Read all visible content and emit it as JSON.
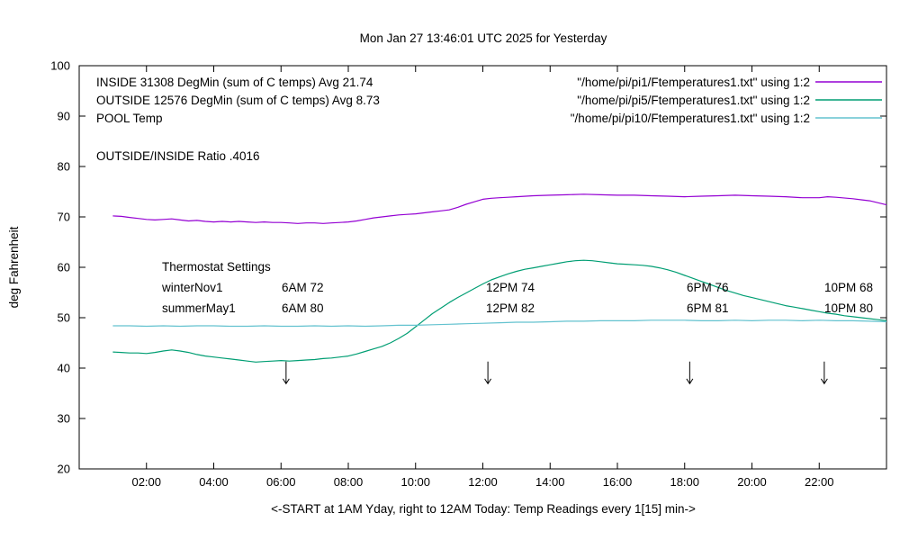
{
  "title": "Mon Jan 27 13:46:01 UTC 2025 for Yesterday",
  "axes": {
    "ylabel": "deg Fahrenheit",
    "xlabel": "<-START at 1AM Yday, right to 12AM Today:  Temp Readings every 1[15] min->",
    "y_ticks": [
      "20",
      "30",
      "40",
      "50",
      "60",
      "70",
      "80",
      "90",
      "100"
    ],
    "x_ticks": [
      "02:00",
      "04:00",
      "06:00",
      "08:00",
      "10:00",
      "12:00",
      "14:00",
      "16:00",
      "18:00",
      "20:00",
      "22:00"
    ]
  },
  "legend": {
    "rows": [
      {
        "label": "INSIDE 31308 DegMin (sum of C temps) Avg 21.74",
        "file": "\"/home/pi/pi1/Ftemperatures1.txt\" using 1:2"
      },
      {
        "label": "OUTSIDE 12576 DegMin (sum of C temps) Avg 8.73",
        "file": "\"/home/pi/pi5/Ftemperatures1.txt\" using 1:2"
      },
      {
        "label": "POOL Temp",
        "file": "\"/home/pi/pi10/Ftemperatures1.txt\" using 1:2"
      }
    ]
  },
  "annotations": {
    "ratio": "OUTSIDE/INSIDE Ratio .4016",
    "thermostat": {
      "title": "Thermostat Settings",
      "rows": [
        {
          "name": "winterNov1",
          "c1": "6AM 72",
          "c2": "12PM 74",
          "c3": "6PM 76",
          "c4": "10PM 68"
        },
        {
          "name": "summerMay1",
          "c1": "6AM 80",
          "c2": "12PM 82",
          "c3": "6PM 81",
          "c4": "10PM 80"
        }
      ]
    }
  },
  "chart_data": {
    "type": "line",
    "title": "Mon Jan 27 13:46:01 UTC 2025 for Yesterday",
    "xlabel": "<-START at 1AM Yday, right to 12AM Today:  Temp Readings every 1[15] min->",
    "ylabel": "deg Fahrenheit",
    "xlim": [
      0,
      24
    ],
    "ylim": [
      20,
      100
    ],
    "grid": false,
    "legend_position": "top-inside",
    "x_tick_hours": [
      2,
      4,
      6,
      8,
      10,
      12,
      14,
      16,
      18,
      20,
      22
    ],
    "y_tick_values": [
      20,
      30,
      40,
      50,
      60,
      70,
      80,
      90,
      100
    ],
    "arrow_hours": [
      6.15,
      12.15,
      18.15,
      22.15
    ],
    "arrow_value_from": 41.3,
    "arrow_value_to": 36.9,
    "series": [
      {
        "name": "INSIDE 31308 DegMin (sum of C temps) Avg 21.74",
        "color": "#9400d3",
        "points": [
          [
            1,
            70.2
          ],
          [
            1.25,
            70.1
          ],
          [
            1.5,
            69.9
          ],
          [
            1.75,
            69.7
          ],
          [
            2,
            69.5
          ],
          [
            2.25,
            69.4
          ],
          [
            2.5,
            69.5
          ],
          [
            2.75,
            69.6
          ],
          [
            3,
            69.4
          ],
          [
            3.25,
            69.2
          ],
          [
            3.5,
            69.3
          ],
          [
            3.75,
            69.1
          ],
          [
            4,
            69.0
          ],
          [
            4.25,
            69.1
          ],
          [
            4.5,
            69.0
          ],
          [
            4.75,
            69.1
          ],
          [
            5,
            69.0
          ],
          [
            5.25,
            68.9
          ],
          [
            5.5,
            69.0
          ],
          [
            5.75,
            68.9
          ],
          [
            6,
            68.9
          ],
          [
            6.25,
            68.8
          ],
          [
            6.5,
            68.7
          ],
          [
            6.75,
            68.8
          ],
          [
            7,
            68.8
          ],
          [
            7.25,
            68.7
          ],
          [
            7.5,
            68.8
          ],
          [
            7.75,
            68.9
          ],
          [
            8,
            69.0
          ],
          [
            8.25,
            69.2
          ],
          [
            8.5,
            69.5
          ],
          [
            8.75,
            69.8
          ],
          [
            9,
            70.0
          ],
          [
            9.25,
            70.2
          ],
          [
            9.5,
            70.4
          ],
          [
            9.75,
            70.5
          ],
          [
            10,
            70.6
          ],
          [
            10.25,
            70.8
          ],
          [
            10.5,
            71.0
          ],
          [
            10.75,
            71.2
          ],
          [
            11,
            71.4
          ],
          [
            11.25,
            71.9
          ],
          [
            11.5,
            72.5
          ],
          [
            11.75,
            73.0
          ],
          [
            12,
            73.5
          ],
          [
            12.25,
            73.7
          ],
          [
            12.5,
            73.8
          ],
          [
            12.75,
            73.9
          ],
          [
            13,
            74.0
          ],
          [
            13.5,
            74.2
          ],
          [
            14,
            74.3
          ],
          [
            14.5,
            74.4
          ],
          [
            15,
            74.5
          ],
          [
            15.5,
            74.4
          ],
          [
            16,
            74.3
          ],
          [
            16.5,
            74.3
          ],
          [
            17,
            74.2
          ],
          [
            17.5,
            74.1
          ],
          [
            18,
            74.0
          ],
          [
            18.5,
            74.1
          ],
          [
            19,
            74.2
          ],
          [
            19.5,
            74.3
          ],
          [
            20,
            74.2
          ],
          [
            20.5,
            74.1
          ],
          [
            21,
            74.0
          ],
          [
            21.5,
            73.8
          ],
          [
            22,
            73.8
          ],
          [
            22.25,
            74.0
          ],
          [
            22.5,
            73.9
          ],
          [
            23,
            73.6
          ],
          [
            23.25,
            73.4
          ],
          [
            23.5,
            73.2
          ],
          [
            23.75,
            72.8
          ],
          [
            24,
            72.4
          ]
        ]
      },
      {
        "name": "OUTSIDE 12576 DegMin (sum of C temps) Avg 8.73",
        "color": "#009e73",
        "points": [
          [
            1,
            43.2
          ],
          [
            1.25,
            43.1
          ],
          [
            1.5,
            43.0
          ],
          [
            1.75,
            43.0
          ],
          [
            2,
            42.9
          ],
          [
            2.25,
            43.1
          ],
          [
            2.5,
            43.4
          ],
          [
            2.75,
            43.6
          ],
          [
            3,
            43.4
          ],
          [
            3.25,
            43.1
          ],
          [
            3.5,
            42.7
          ],
          [
            3.75,
            42.4
          ],
          [
            4,
            42.2
          ],
          [
            4.25,
            42.0
          ],
          [
            4.5,
            41.8
          ],
          [
            4.75,
            41.6
          ],
          [
            5,
            41.4
          ],
          [
            5.25,
            41.2
          ],
          [
            5.5,
            41.3
          ],
          [
            5.75,
            41.4
          ],
          [
            6,
            41.5
          ],
          [
            6.25,
            41.4
          ],
          [
            6.5,
            41.5
          ],
          [
            6.75,
            41.6
          ],
          [
            7,
            41.7
          ],
          [
            7.25,
            41.9
          ],
          [
            7.5,
            42.0
          ],
          [
            7.75,
            42.2
          ],
          [
            8,
            42.4
          ],
          [
            8.25,
            42.8
          ],
          [
            8.5,
            43.3
          ],
          [
            8.75,
            43.8
          ],
          [
            9,
            44.3
          ],
          [
            9.25,
            45.0
          ],
          [
            9.5,
            45.9
          ],
          [
            9.75,
            46.9
          ],
          [
            10,
            48.2
          ],
          [
            10.25,
            49.5
          ],
          [
            10.5,
            50.8
          ],
          [
            10.75,
            51.9
          ],
          [
            11,
            53.0
          ],
          [
            11.25,
            54.0
          ],
          [
            11.5,
            54.9
          ],
          [
            11.75,
            55.8
          ],
          [
            12,
            56.7
          ],
          [
            12.25,
            57.5
          ],
          [
            12.5,
            58.1
          ],
          [
            12.75,
            58.7
          ],
          [
            13,
            59.2
          ],
          [
            13.25,
            59.6
          ],
          [
            13.5,
            59.9
          ],
          [
            13.75,
            60.2
          ],
          [
            14,
            60.5
          ],
          [
            14.25,
            60.8
          ],
          [
            14.5,
            61.1
          ],
          [
            14.75,
            61.3
          ],
          [
            15,
            61.4
          ],
          [
            15.25,
            61.3
          ],
          [
            15.5,
            61.1
          ],
          [
            15.75,
            60.9
          ],
          [
            16,
            60.7
          ],
          [
            16.25,
            60.6
          ],
          [
            16.5,
            60.5
          ],
          [
            16.75,
            60.4
          ],
          [
            17,
            60.2
          ],
          [
            17.25,
            59.9
          ],
          [
            17.5,
            59.5
          ],
          [
            17.75,
            59.0
          ],
          [
            18,
            58.4
          ],
          [
            18.25,
            57.8
          ],
          [
            18.5,
            57.2
          ],
          [
            18.75,
            56.6
          ],
          [
            19,
            56.0
          ],
          [
            19.25,
            55.4
          ],
          [
            19.5,
            54.9
          ],
          [
            19.75,
            54.4
          ],
          [
            20,
            54.0
          ],
          [
            20.25,
            53.6
          ],
          [
            20.5,
            53.2
          ],
          [
            20.75,
            52.8
          ],
          [
            21,
            52.4
          ],
          [
            21.25,
            52.1
          ],
          [
            21.5,
            51.8
          ],
          [
            21.75,
            51.5
          ],
          [
            22,
            51.2
          ],
          [
            22.25,
            50.9
          ],
          [
            22.5,
            50.7
          ],
          [
            22.75,
            50.4
          ],
          [
            23,
            50.2
          ],
          [
            23.25,
            50.0
          ],
          [
            23.5,
            49.8
          ],
          [
            23.75,
            49.6
          ],
          [
            24,
            49.4
          ]
        ]
      },
      {
        "name": "POOL Temp",
        "color": "#63c2cf",
        "points": [
          [
            1,
            48.4
          ],
          [
            1.5,
            48.4
          ],
          [
            2,
            48.3
          ],
          [
            2.5,
            48.4
          ],
          [
            3,
            48.3
          ],
          [
            3.5,
            48.4
          ],
          [
            4,
            48.4
          ],
          [
            4.5,
            48.3
          ],
          [
            5,
            48.3
          ],
          [
            5.5,
            48.4
          ],
          [
            6,
            48.3
          ],
          [
            6.5,
            48.3
          ],
          [
            7,
            48.4
          ],
          [
            7.5,
            48.3
          ],
          [
            8,
            48.4
          ],
          [
            8.5,
            48.3
          ],
          [
            9,
            48.4
          ],
          [
            9.5,
            48.5
          ],
          [
            10,
            48.5
          ],
          [
            10.5,
            48.6
          ],
          [
            11,
            48.7
          ],
          [
            11.5,
            48.8
          ],
          [
            12,
            48.9
          ],
          [
            12.5,
            49.0
          ],
          [
            13,
            49.1
          ],
          [
            13.5,
            49.1
          ],
          [
            14,
            49.2
          ],
          [
            14.5,
            49.3
          ],
          [
            15,
            49.3
          ],
          [
            15.5,
            49.4
          ],
          [
            16,
            49.4
          ],
          [
            16.5,
            49.4
          ],
          [
            17,
            49.5
          ],
          [
            17.5,
            49.5
          ],
          [
            18,
            49.5
          ],
          [
            18.5,
            49.4
          ],
          [
            19,
            49.4
          ],
          [
            19.5,
            49.5
          ],
          [
            20,
            49.4
          ],
          [
            20.5,
            49.5
          ],
          [
            21,
            49.5
          ],
          [
            21.5,
            49.4
          ],
          [
            22,
            49.5
          ],
          [
            22.5,
            49.4
          ],
          [
            23,
            49.4
          ],
          [
            23.5,
            49.3
          ],
          [
            24,
            49.2
          ]
        ]
      }
    ]
  }
}
